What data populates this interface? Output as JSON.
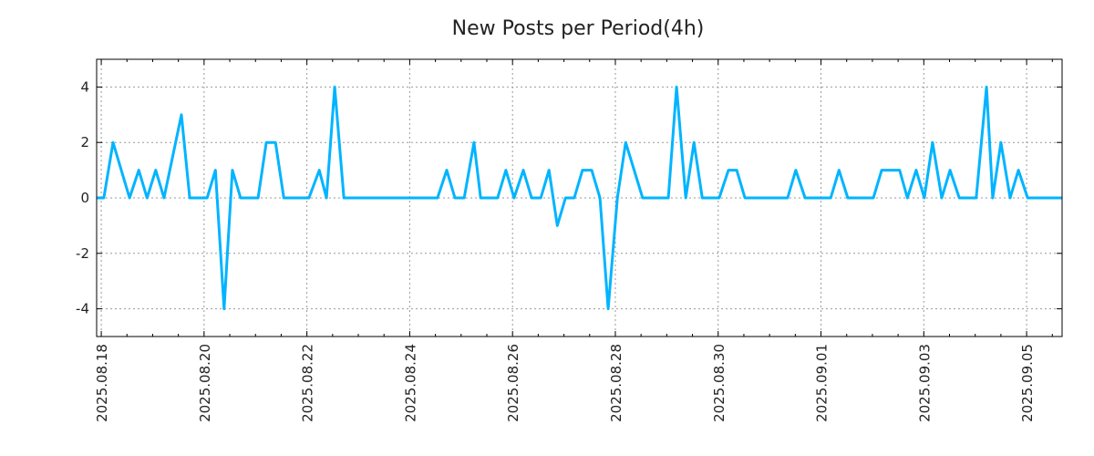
{
  "chart_data": {
    "type": "line",
    "title": "New Posts per Period(4h)",
    "xlabel": "",
    "ylabel": "",
    "x_unit": "days since 2025.08.18",
    "xlim": [
      -0.09,
      18.69
    ],
    "ylim": [
      -5,
      5
    ],
    "grid": true,
    "line_color": "#00b4ff",
    "x_ticks": [
      {
        "value": 0,
        "label": "2025.08.18"
      },
      {
        "value": 2,
        "label": "2025.08.20"
      },
      {
        "value": 4,
        "label": "2025.08.22"
      },
      {
        "value": 6,
        "label": "2025.08.24"
      },
      {
        "value": 8,
        "label": "2025.08.26"
      },
      {
        "value": 10,
        "label": "2025.08.28"
      },
      {
        "value": 12,
        "label": "2025.08.30"
      },
      {
        "value": 14,
        "label": "2025.09.01"
      },
      {
        "value": 16,
        "label": "2025.09.03"
      },
      {
        "value": 18,
        "label": "2025.09.05"
      }
    ],
    "y_ticks": [
      {
        "value": 4,
        "label": "4"
      },
      {
        "value": 2,
        "label": "2"
      },
      {
        "value": 0,
        "label": "0"
      },
      {
        "value": -2,
        "label": "-2"
      },
      {
        "value": -4,
        "label": "-4"
      }
    ],
    "series": [
      {
        "name": "New Posts",
        "x": [
          -0.09,
          0.05,
          0.23,
          0.55,
          0.73,
          0.89,
          1.06,
          1.22,
          1.56,
          1.72,
          2.06,
          2.22,
          2.39,
          2.55,
          2.71,
          3.05,
          3.21,
          3.39,
          3.55,
          4.04,
          4.24,
          4.38,
          4.54,
          4.72,
          6.54,
          6.72,
          6.88,
          7.06,
          7.25,
          7.38,
          7.71,
          7.87,
          8.03,
          8.21,
          8.37,
          8.55,
          8.71,
          8.87,
          9.03,
          9.2,
          9.36,
          9.54,
          9.7,
          9.86,
          10.04,
          10.2,
          10.53,
          11.03,
          11.19,
          11.37,
          11.53,
          11.69,
          12.02,
          12.2,
          12.36,
          12.52,
          13.35,
          13.51,
          13.69,
          14.19,
          14.35,
          14.52,
          15.02,
          15.18,
          15.53,
          15.68,
          15.85,
          16.01,
          16.17,
          16.35,
          16.51,
          16.69,
          17.02,
          17.22,
          17.34,
          17.5,
          17.68,
          17.84,
          18.02,
          18.69
        ],
        "y": [
          0,
          0,
          2,
          0,
          1,
          0,
          1,
          0,
          3,
          0,
          0,
          1,
          -4,
          1,
          0,
          0,
          2,
          2,
          0,
          0,
          1,
          0,
          4,
          0,
          0,
          1,
          0,
          0,
          2,
          0,
          0,
          1,
          0,
          1,
          0,
          0,
          1,
          -1,
          0,
          0,
          1,
          1,
          0,
          -4,
          0,
          2,
          0,
          0,
          4,
          0,
          2,
          0,
          0,
          1,
          1,
          0,
          0,
          1,
          0,
          0,
          1,
          0,
          0,
          1,
          1,
          0,
          1,
          0,
          2,
          0,
          1,
          0,
          0,
          4,
          0,
          2,
          0,
          1,
          0,
          0
        ]
      }
    ]
  }
}
